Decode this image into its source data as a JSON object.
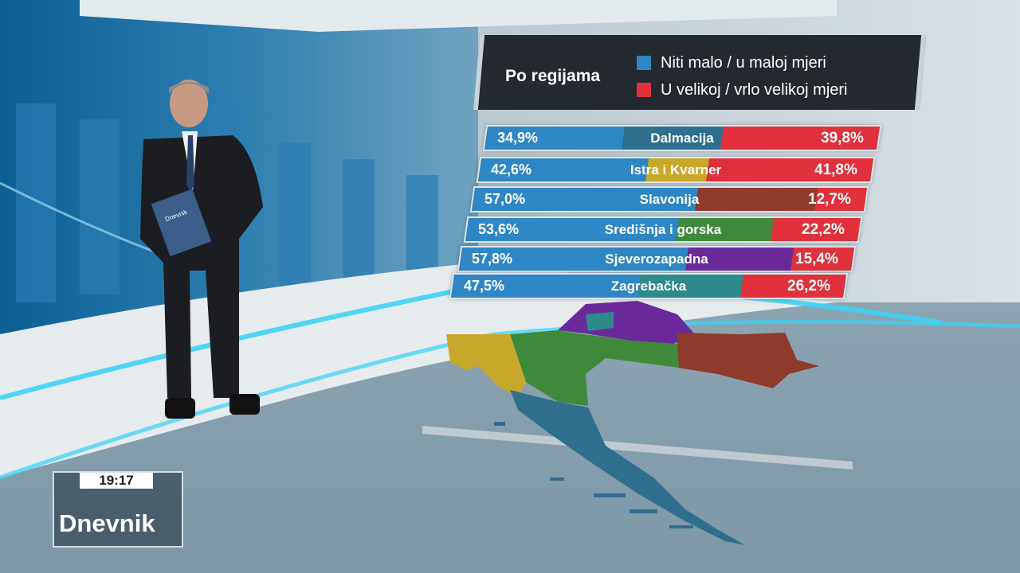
{
  "legend": {
    "title": "Po regijama",
    "low_label": "Niti malo / u maloj mjeri",
    "high_label": "U velikoj / vrlo velikoj mjeri",
    "low_color": "#2e86c4",
    "high_color": "#e0303b"
  },
  "rows": [
    {
      "region": "Dalmacija",
      "low": "34,9%",
      "high": "39,8%",
      "low_value": 34.9,
      "high_value": 39.8,
      "region_color": "#2f6f8e"
    },
    {
      "region": "Istra i Kvarner",
      "low": "42,6%",
      "high": "41,8%",
      "low_value": 42.6,
      "high_value": 41.8,
      "region_color": "#c8a82a"
    },
    {
      "region": "Slavonija",
      "low": "57,0%",
      "high": "12,7%",
      "low_value": 57.0,
      "high_value": 12.7,
      "region_color": "#8e3b2c"
    },
    {
      "region": "Središnja i gorska",
      "low": "53,6%",
      "high": "22,2%",
      "low_value": 53.6,
      "high_value": 22.2,
      "region_color": "#3f8a3a"
    },
    {
      "region": "Sjeverozapadna",
      "low": "57,8%",
      "high": "15,4%",
      "low_value": 57.8,
      "high_value": 15.4,
      "region_color": "#6a2a9a"
    },
    {
      "region": "Zagrebačka",
      "low": "47,5%",
      "high": "26,2%",
      "low_value": 47.5,
      "high_value": 26.2,
      "region_color": "#2d8a8a"
    }
  ],
  "broadcast": {
    "time": "19:17",
    "show": "Dnevnik",
    "folder_label": "Dnevnik"
  }
}
